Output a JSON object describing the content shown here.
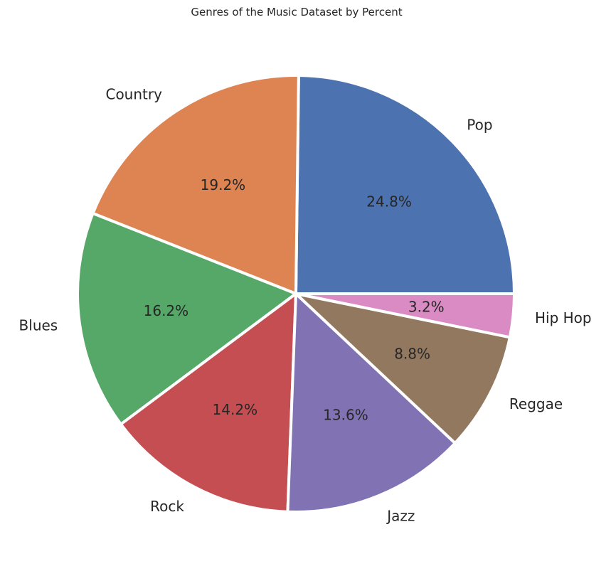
{
  "chart_data": {
    "type": "pie",
    "title": "Genres of the Music Dataset by Percent",
    "categories": [
      "Pop",
      "Country",
      "Blues",
      "Rock",
      "Jazz",
      "Reggae",
      "Hip Hop"
    ],
    "values": [
      24.8,
      19.2,
      16.2,
      14.2,
      13.6,
      8.8,
      3.2
    ],
    "percent_labels": [
      "24.8%",
      "19.2%",
      "16.2%",
      "14.2%",
      "13.6%",
      "8.8%",
      "3.2%"
    ],
    "colors": [
      "#4c72b0",
      "#dd8452",
      "#55a868",
      "#c44e52",
      "#8172b3",
      "#937860",
      "#da8bc3"
    ],
    "start_angle_deg": 0,
    "direction": "counterclockwise"
  }
}
